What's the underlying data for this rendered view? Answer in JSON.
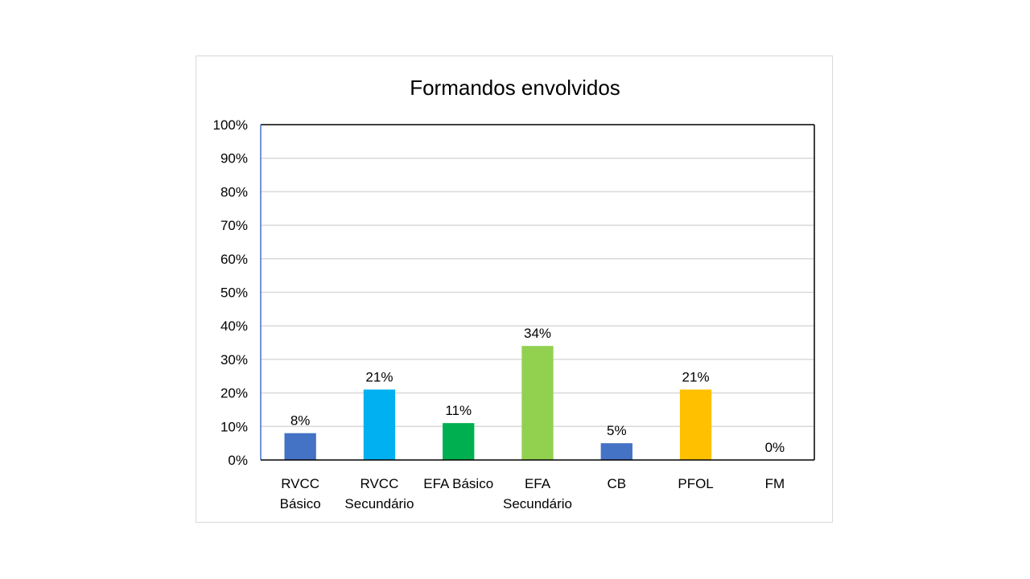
{
  "chart_data": {
    "type": "bar",
    "title": "Formandos envolvidos",
    "xlabel": "",
    "ylabel": "",
    "ylim": [
      0,
      100
    ],
    "y_ticks": [
      "0%",
      "10%",
      "20%",
      "30%",
      "40%",
      "50%",
      "60%",
      "70%",
      "80%",
      "90%",
      "100%"
    ],
    "grid": true,
    "legend": "none",
    "categories": [
      [
        "RVCC",
        "Básico"
      ],
      [
        "RVCC",
        "Secundário"
      ],
      [
        "EFA Básico"
      ],
      [
        "EFA",
        "Secundário"
      ],
      [
        "CB"
      ],
      [
        "PFOL"
      ],
      [
        "FM"
      ]
    ],
    "values": [
      8,
      21,
      11,
      34,
      5,
      21,
      0
    ],
    "data_labels": [
      "8%",
      "21%",
      "11%",
      "34%",
      "5%",
      "21%",
      "0%"
    ],
    "colors": [
      "#4472C4",
      "#00B0F0",
      "#00B050",
      "#92D050",
      "#4472C4",
      "#FFC000",
      "#A5A5A5"
    ]
  }
}
